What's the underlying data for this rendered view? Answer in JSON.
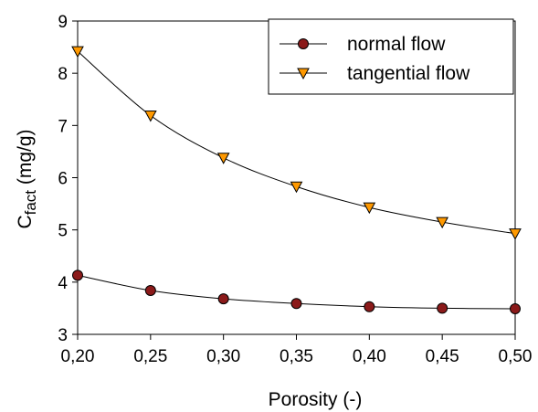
{
  "chart_data": {
    "type": "line",
    "xlabel": "Porosity (-)",
    "ylabel": {
      "main": "C",
      "sub": "fact",
      "unit": " (mg/g)"
    },
    "x": [
      0.2,
      0.25,
      0.3,
      0.35,
      0.4,
      0.45,
      0.5
    ],
    "xticks": [
      "0,20",
      "0,25",
      "0,30",
      "0,35",
      "0,40",
      "0,45",
      "0,50"
    ],
    "yticks": [
      "3",
      "4",
      "5",
      "6",
      "7",
      "8",
      "9"
    ],
    "xlim": [
      0.2,
      0.5
    ],
    "ylim": [
      3,
      9
    ],
    "grid": false,
    "legend_position": "top-right",
    "series": [
      {
        "name": "normal flow",
        "marker": "circle",
        "color": "#8B1A1A",
        "values": [
          4.13,
          3.84,
          3.68,
          3.59,
          3.53,
          3.5,
          3.49
        ]
      },
      {
        "name": "tangential flow",
        "marker": "triangle-down",
        "color": "#FF9900",
        "values": [
          8.42,
          7.19,
          6.38,
          5.83,
          5.43,
          5.15,
          4.93
        ]
      }
    ]
  }
}
